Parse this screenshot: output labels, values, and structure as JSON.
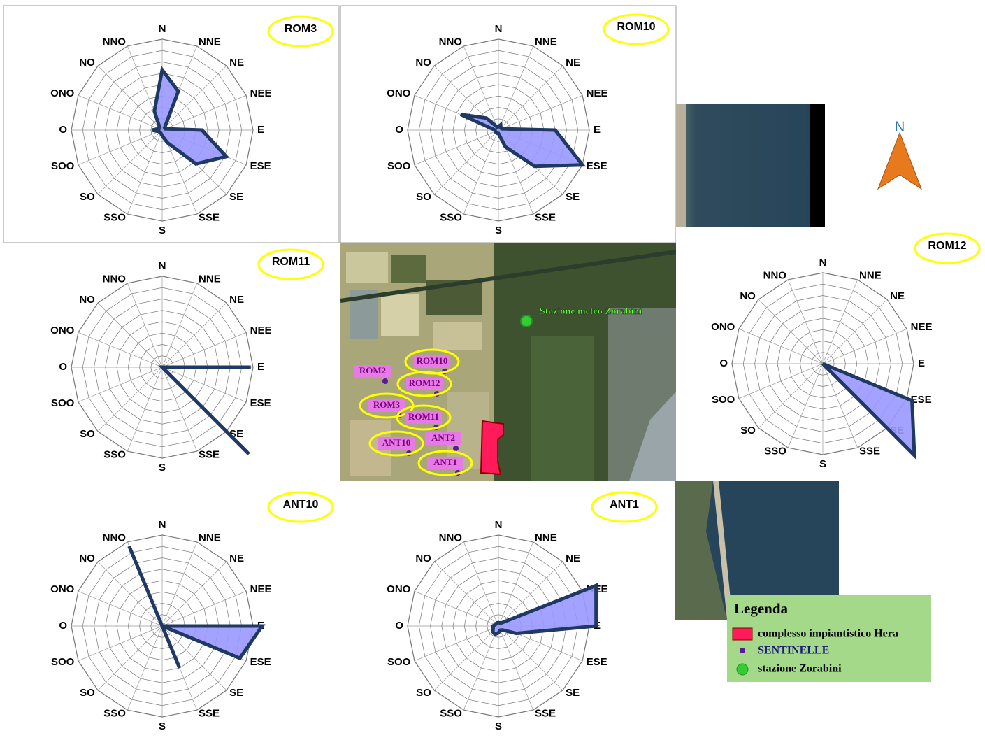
{
  "chart_data": [
    {
      "type": "radar",
      "title": "ROM3",
      "categories": [
        "N",
        "NNE",
        "NE",
        "NEE",
        "E",
        "ESE",
        "SE",
        "SSE",
        "S",
        "SSO",
        "SO",
        "SOO",
        "O",
        "ONO",
        "NO",
        "NNO"
      ],
      "values": [
        5.3,
        3.7,
        0.3,
        0.3,
        3.5,
        6.1,
        4.2,
        1.2,
        0.5,
        0.3,
        0.3,
        0.3,
        0.9,
        0.3,
        0.3,
        1.8
      ],
      "rlim": [
        0,
        8
      ],
      "color": "#9999ff",
      "line_color": "#1f3864"
    },
    {
      "type": "radar",
      "title": "ROM10",
      "categories": [
        "N",
        "NNE",
        "NE",
        "NEE",
        "E",
        "ESE",
        "SE",
        "SSE",
        "S",
        "SSO",
        "SO",
        "SOO",
        "O",
        "ONO",
        "NO",
        "NNO"
      ],
      "values": [
        0.3,
        0.5,
        0.3,
        0.3,
        5.0,
        8.0,
        4.5,
        1.6,
        0.3,
        0.3,
        0.3,
        0.3,
        0.3,
        3.6,
        1.5,
        0.3
      ],
      "rlim": [
        0,
        8
      ],
      "color": "#9999ff",
      "line_color": "#1f3864"
    },
    {
      "type": "radar",
      "title": "ROM11",
      "categories": [
        "N",
        "NNE",
        "NE",
        "NEE",
        "E",
        "ESE",
        "SE",
        "SSE",
        "S",
        "SSO",
        "SO",
        "SOO",
        "O",
        "ONO",
        "NO",
        "NNO"
      ],
      "values": [
        0,
        0,
        0,
        0,
        7.8,
        0,
        10.8,
        0,
        0,
        0,
        0,
        0,
        0,
        0,
        0,
        0
      ],
      "rlim": [
        0,
        8
      ],
      "color": "#9999ff",
      "line_color": "#1f3864"
    },
    {
      "type": "radar",
      "title": "ROM12",
      "categories": [
        "N",
        "NNE",
        "NE",
        "NEE",
        "E",
        "ESE",
        "SE",
        "SSE",
        "S",
        "SSO",
        "SO",
        "SOO",
        "O",
        "ONO",
        "NO",
        "NNO"
      ],
      "values": [
        0,
        0,
        0,
        0,
        0,
        8.5,
        11.4,
        0,
        0,
        0,
        0,
        0,
        0,
        0,
        0,
        0
      ],
      "rlim": [
        0,
        8
      ],
      "color": "#9999ff",
      "line_color": "#1f3864"
    },
    {
      "type": "radar",
      "title": "ANT10",
      "categories": [
        "N",
        "NNE",
        "NE",
        "NEE",
        "E",
        "ESE",
        "SE",
        "SSE",
        "S",
        "SSO",
        "SO",
        "SOO",
        "O",
        "ONO",
        "NO",
        "NNO"
      ],
      "values": [
        0,
        0,
        0,
        0,
        8.8,
        7.4,
        0,
        4.0,
        0,
        0,
        0,
        0,
        0,
        0,
        0,
        7.6
      ],
      "rlim": [
        0,
        8
      ],
      "color": "#9999ff",
      "line_color": "#1f3864"
    },
    {
      "type": "radar",
      "title": "ANT1",
      "categories": [
        "N",
        "NNE",
        "NE",
        "NEE",
        "E",
        "ESE",
        "SE",
        "SSE",
        "S",
        "SSO",
        "SO",
        "SOO",
        "O",
        "ONO",
        "NO",
        "NNO"
      ],
      "values": [
        0.3,
        0.3,
        0.4,
        9.3,
        8.6,
        1.7,
        0.5,
        0.4,
        0.6,
        0.8,
        0.7,
        0.5,
        0.5,
        0.3,
        0.3,
        0.3
      ],
      "rlim": [
        0,
        8
      ],
      "color": "#9999ff",
      "line_color": "#1f3864"
    }
  ],
  "map": {
    "station_label": "Stazione meteo Zorabini",
    "points": [
      "ROM2",
      "ROM10",
      "ROM12",
      "ROM3",
      "ROM11",
      "ANT10",
      "ANT2",
      "ANT1"
    ],
    "north": "N",
    "legend": {
      "title": "Legenda",
      "items": [
        "complesso impiantistico Hera",
        "SENTINELLE",
        "stazione Zorabini"
      ]
    }
  }
}
